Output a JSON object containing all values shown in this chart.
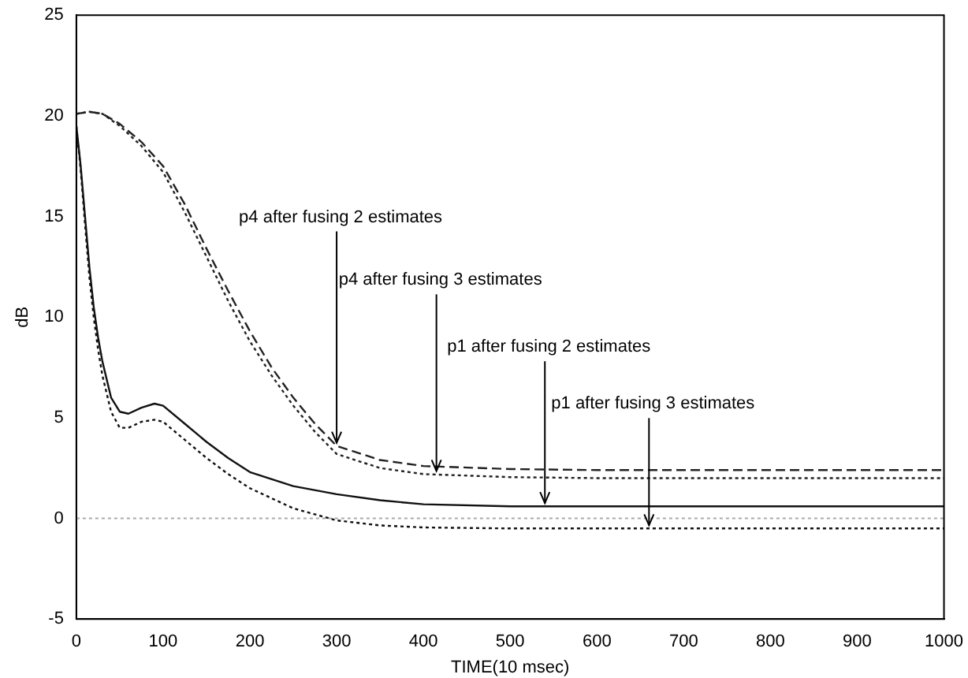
{
  "chart_data": {
    "type": "line",
    "xlabel": "TIME(10 msec)",
    "ylabel": "dB",
    "xlim": [
      0,
      1000
    ],
    "ylim": [
      -5,
      25
    ],
    "xticks": [
      0,
      100,
      200,
      300,
      400,
      500,
      600,
      700,
      800,
      900,
      1000
    ],
    "yticks": [
      -5,
      0,
      5,
      10,
      15,
      20,
      25
    ],
    "grid": false,
    "legend": false,
    "marker": "none",
    "series": [
      {
        "color": "#222222",
        "line_style": "dashed",
        "x": [
          0,
          15,
          30,
          50,
          75,
          100,
          125,
          150,
          175,
          200,
          225,
          250,
          275,
          300,
          350,
          400,
          500,
          600,
          800,
          1000
        ],
        "values": [
          20.1,
          20.2,
          20.1,
          19.6,
          18.7,
          17.5,
          15.6,
          13.4,
          11.3,
          9.3,
          7.5,
          6.0,
          4.7,
          3.6,
          2.9,
          2.6,
          2.45,
          2.4,
          2.4,
          2.4
        ]
      },
      {
        "color": "#222222",
        "line_style": "dotted",
        "x": [
          0,
          15,
          30,
          50,
          75,
          100,
          125,
          150,
          175,
          200,
          225,
          250,
          275,
          300,
          350,
          400,
          500,
          600,
          800,
          1000
        ],
        "values": [
          20.1,
          20.2,
          20.1,
          19.5,
          18.5,
          17.2,
          15.2,
          13.0,
          10.8,
          8.8,
          7.1,
          5.6,
          4.3,
          3.2,
          2.5,
          2.2,
          2.05,
          2.0,
          2.0,
          2.0
        ]
      },
      {
        "color": "#111111",
        "line_style": "solid",
        "x": [
          0,
          5,
          10,
          15,
          20,
          25,
          30,
          40,
          50,
          60,
          75,
          90,
          100,
          125,
          150,
          175,
          200,
          250,
          300,
          350,
          400,
          500,
          600,
          800,
          1000
        ],
        "values": [
          19.5,
          17.5,
          15.0,
          12.5,
          10.5,
          9.0,
          7.8,
          6.0,
          5.3,
          5.2,
          5.5,
          5.7,
          5.6,
          4.7,
          3.8,
          3.0,
          2.3,
          1.6,
          1.2,
          0.9,
          0.7,
          0.6,
          0.6,
          0.6,
          0.6
        ]
      },
      {
        "color": "#111111",
        "line_style": "dotted",
        "x": [
          0,
          5,
          10,
          15,
          20,
          25,
          30,
          40,
          50,
          60,
          75,
          90,
          100,
          125,
          150,
          175,
          200,
          250,
          300,
          350,
          400,
          500,
          600,
          800,
          1000
        ],
        "values": [
          19.5,
          17.3,
          14.6,
          12.0,
          10.0,
          8.4,
          7.1,
          5.3,
          4.5,
          4.5,
          4.8,
          4.9,
          4.8,
          3.9,
          3.0,
          2.2,
          1.5,
          0.5,
          -0.1,
          -0.35,
          -0.45,
          -0.5,
          -0.5,
          -0.5,
          -0.5
        ]
      }
    ],
    "ref_lines": [
      {
        "axis": "y",
        "value": 0,
        "color": "#aaaaaa",
        "line_style": "dotted"
      }
    ],
    "annotations": [
      {
        "text": "p4 after fusing 2 estimates",
        "x": 300,
        "y": 3.6
      },
      {
        "text": "p4 after fusing 3 estimates",
        "x": 415,
        "y": 2.2
      },
      {
        "text": "p1 after fusing 2 estimates",
        "x": 540,
        "y": 0.6
      },
      {
        "text": "p1 after fusing 3 estimates",
        "x": 660,
        "y": -0.5
      }
    ]
  }
}
